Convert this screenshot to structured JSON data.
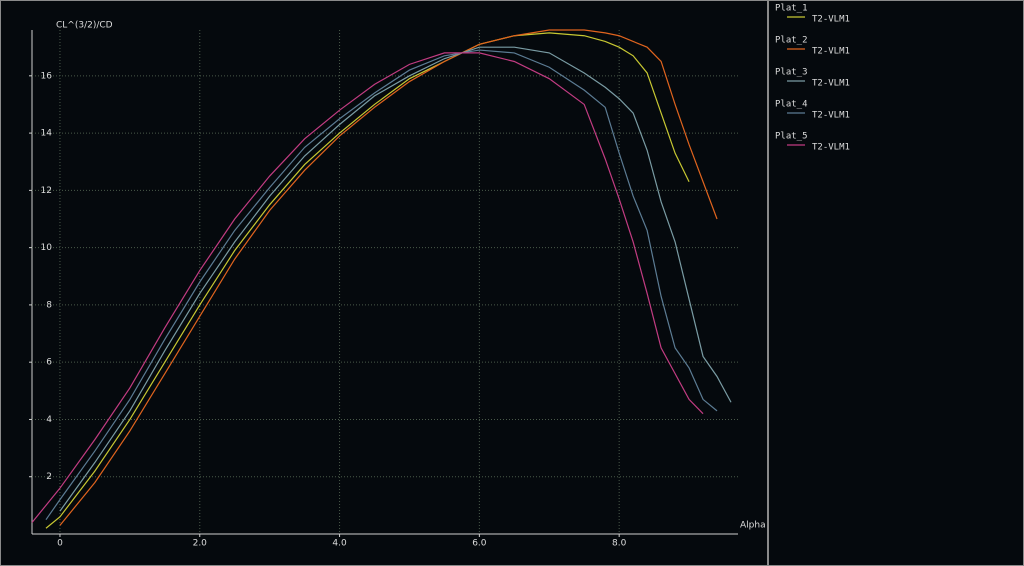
{
  "chart_data": {
    "type": "line",
    "x_label": "Alpha",
    "y_label": "CL^(3/2)/CD",
    "grid": true,
    "x": [
      -0.4,
      -0.2,
      0,
      0.5,
      1,
      1.5,
      2,
      2.5,
      3,
      3.5,
      4,
      4.5,
      5,
      5.5,
      6,
      6.5,
      7,
      7.5,
      7.8,
      8,
      8.2,
      8.4,
      8.6,
      8.8,
      9,
      9.2,
      9.4,
      9.6
    ],
    "xlim": [
      -0.4,
      9.7
    ],
    "ylim": [
      0,
      17.6
    ],
    "xticks": [
      0,
      {
        "value": 2,
        "label": "2.0"
      },
      {
        "value": 4,
        "label": "4.0"
      },
      {
        "value": 6,
        "label": "6.0"
      },
      {
        "value": 8,
        "label": "8.0"
      }
    ],
    "yticks": [
      2,
      4,
      6,
      8,
      10,
      12,
      14,
      16
    ],
    "series": [
      {
        "name": "Plat_1",
        "label": "T2-VLM1",
        "color": "#c8c832",
        "values": [
          null,
          0.2,
          0.6,
          2.2,
          4.0,
          6.0,
          8.0,
          9.9,
          11.5,
          12.9,
          14.0,
          15.0,
          15.9,
          16.5,
          17.1,
          17.4,
          17.5,
          17.4,
          17.2,
          17.0,
          16.7,
          16.1,
          14.7,
          13.3,
          12.3,
          null,
          null,
          null
        ]
      },
      {
        "name": "Plat_2",
        "label": "T2-VLM1",
        "color": "#e0641e",
        "values": [
          null,
          null,
          0.3,
          1.8,
          3.6,
          5.6,
          7.6,
          9.6,
          11.3,
          12.7,
          13.9,
          14.9,
          15.8,
          16.5,
          17.1,
          17.4,
          17.6,
          17.6,
          17.5,
          17.4,
          17.2,
          17.0,
          16.5,
          15.0,
          13.6,
          12.3,
          11.0,
          null
        ]
      },
      {
        "name": "Plat_3",
        "label": "T2-VLM1",
        "color": "#7a9ca4",
        "values": [
          null,
          null,
          0.8,
          2.5,
          4.3,
          6.4,
          8.4,
          10.2,
          11.8,
          13.2,
          14.3,
          15.3,
          16.0,
          16.6,
          17.0,
          17.0,
          16.8,
          16.1,
          15.6,
          15.2,
          14.7,
          13.4,
          11.6,
          10.2,
          8.2,
          6.2,
          5.5,
          4.6
        ]
      },
      {
        "name": "Plat_4",
        "label": "T2-VLM1",
        "color": "#5c7c94",
        "values": [
          null,
          0.5,
          1.2,
          2.9,
          4.7,
          6.8,
          8.8,
          10.6,
          12.1,
          13.5,
          14.5,
          15.4,
          16.2,
          16.7,
          16.9,
          16.8,
          16.3,
          15.5,
          14.9,
          13.3,
          11.8,
          10.6,
          8.3,
          6.5,
          5.8,
          4.7,
          4.3,
          null
        ]
      },
      {
        "name": "Plat_5",
        "label": "T2-VLM1",
        "color": "#c23c82",
        "values": [
          0.4,
          1.0,
          1.6,
          3.3,
          5.1,
          7.2,
          9.2,
          11.0,
          12.5,
          13.8,
          14.8,
          15.7,
          16.4,
          16.8,
          16.8,
          16.5,
          15.9,
          15.0,
          13.1,
          11.7,
          10.2,
          8.4,
          6.5,
          5.6,
          4.7,
          4.2,
          null,
          null
        ]
      }
    ]
  }
}
